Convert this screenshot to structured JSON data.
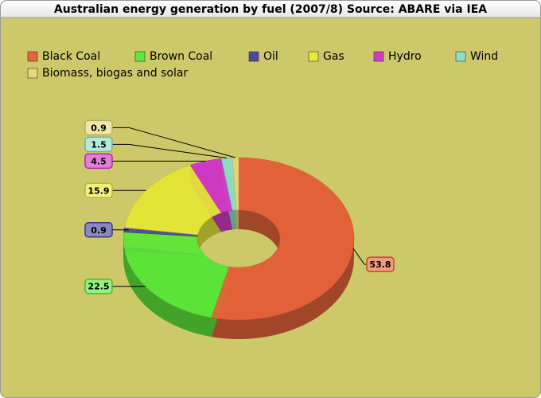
{
  "chart_data": {
    "type": "donut",
    "title": "Australian energy generation by fuel (2007/8) Source: ABARE via IEA",
    "categories": [
      "Black Coal",
      "Brown Coal",
      "Oil",
      "Gas",
      "Hydro",
      "Wind",
      "Biomass, biogas and solar"
    ],
    "values": [
      53.8,
      22.5,
      0.9,
      15.9,
      4.5,
      1.5,
      0.9
    ],
    "colors": [
      "#e8643a",
      "#5ee83a",
      "#4a4aa0",
      "#e8e83a",
      "#d43ac8",
      "#8ee0c8",
      "#e8d87a"
    ],
    "legend": "top"
  }
}
